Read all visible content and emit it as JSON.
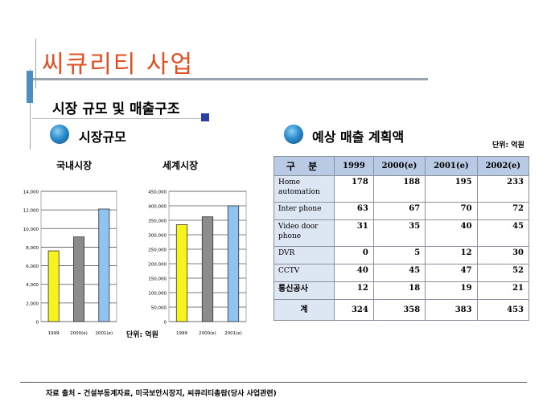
{
  "header": {
    "main_title": "씨큐리티 사업",
    "sub_title": "시장 규모 및 매출구조"
  },
  "sections": {
    "market_size": "시장규모",
    "forecast": "예상 매출 계획액"
  },
  "table_unit": "단위: 억원",
  "chart_unit": "단위: 억원",
  "footer": "자료 출처 – 건설부동계자료, 미국보안시장지, 씨큐리티총람(당사 사업관련)",
  "colors": {
    "title_orange": "#e14f23",
    "bar_yellow": "#f7f31c",
    "bar_gray": "#8c8c8c",
    "bar_blue": "#8fc3f2",
    "table_header": "#b9cbe4",
    "table_label": "#dde6f3"
  },
  "chart_data": [
    {
      "type": "bar",
      "title": "국내시장",
      "categories": [
        "1999",
        "2000(e)",
        "2001(e)"
      ],
      "values": [
        7600,
        9100,
        12100
      ],
      "ylim": [
        0,
        14000
      ],
      "yticks": [
        "0",
        "2,000",
        "4,000",
        "6,000",
        "8,000",
        "10,000",
        "12,000",
        "14,000"
      ],
      "grid": true
    },
    {
      "type": "bar",
      "title": "세계시장",
      "categories": [
        "1999",
        "2000(e)",
        "2001(e)"
      ],
      "values": [
        335000,
        362000,
        400000
      ],
      "ylim": [
        0,
        450000
      ],
      "yticks": [
        "0",
        "50,000",
        "100,000",
        "150,000",
        "200,000",
        "250,000",
        "300,000",
        "350,000",
        "400,000",
        "450,000"
      ],
      "grid": true
    },
    {
      "type": "table",
      "columns": [
        "구  분",
        "1999",
        "2000(e)",
        "2001(e)",
        "2002(e)"
      ],
      "rows": [
        {
          "label": "Home automation",
          "values": [
            "178",
            "188",
            "195",
            "233"
          ]
        },
        {
          "label": "Inter phone",
          "values": [
            "63",
            "67",
            "70",
            "72"
          ]
        },
        {
          "label": "Video door phone",
          "values": [
            "31",
            "35",
            "40",
            "45"
          ]
        },
        {
          "label": "DVR",
          "values": [
            "0",
            "5",
            "12",
            "30"
          ]
        },
        {
          "label": "CCTV",
          "values": [
            "40",
            "45",
            "47",
            "52"
          ]
        },
        {
          "label": "통신공사",
          "values": [
            "12",
            "18",
            "19",
            "21"
          ]
        },
        {
          "label": "계",
          "values": [
            "324",
            "358",
            "383",
            "453"
          ]
        }
      ]
    }
  ]
}
